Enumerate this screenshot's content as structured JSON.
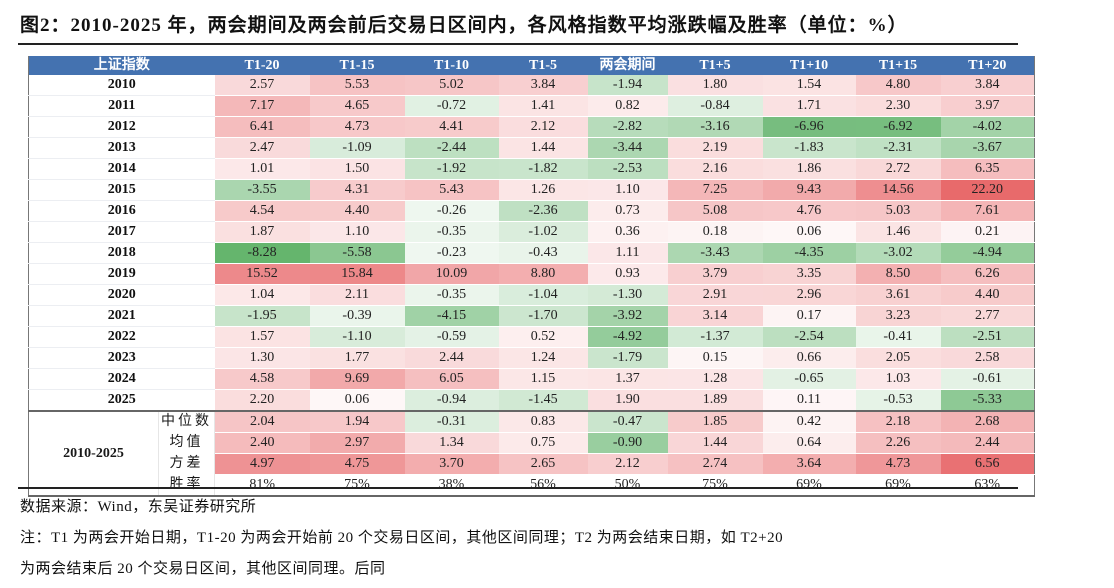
{
  "title": "图2：2010-2025 年，两会期间及两会前后交易日区间内，各风格指数平均涨跌幅及胜率（单位：%）",
  "table": {
    "corner_label": "上证指数",
    "columns": [
      "T1-20",
      "T1-15",
      "T1-10",
      "T1-5",
      "两会期间",
      "T1+5",
      "T1+10",
      "T1+15",
      "T1+20"
    ],
    "rows": [
      {
        "year": "2010",
        "values": [
          "2.57",
          "5.53",
          "5.02",
          "3.84",
          "-1.94",
          "1.80",
          "1.54",
          "4.80",
          "3.84"
        ]
      },
      {
        "year": "2011",
        "values": [
          "7.17",
          "4.65",
          "-0.72",
          "1.41",
          "0.82",
          "-0.84",
          "1.71",
          "2.30",
          "3.97"
        ]
      },
      {
        "year": "2012",
        "values": [
          "6.41",
          "4.73",
          "4.41",
          "2.12",
          "-2.82",
          "-3.16",
          "-6.96",
          "-6.92",
          "-4.02"
        ]
      },
      {
        "year": "2013",
        "values": [
          "2.47",
          "-1.09",
          "-2.44",
          "1.44",
          "-3.44",
          "2.19",
          "-1.83",
          "-2.31",
          "-3.67"
        ]
      },
      {
        "year": "2014",
        "values": [
          "1.01",
          "1.50",
          "-1.92",
          "-1.82",
          "-2.53",
          "2.16",
          "1.86",
          "2.72",
          "6.35"
        ]
      },
      {
        "year": "2015",
        "values": [
          "-3.55",
          "4.31",
          "5.43",
          "1.26",
          "1.10",
          "7.25",
          "9.43",
          "14.56",
          "22.20"
        ]
      },
      {
        "year": "2016",
        "values": [
          "4.54",
          "4.40",
          "-0.26",
          "-2.36",
          "0.73",
          "5.08",
          "4.76",
          "5.03",
          "7.61"
        ]
      },
      {
        "year": "2017",
        "values": [
          "1.87",
          "1.10",
          "-0.35",
          "-1.02",
          "0.36",
          "0.18",
          "0.06",
          "1.46",
          "0.21"
        ]
      },
      {
        "year": "2018",
        "values": [
          "-8.28",
          "-5.58",
          "-0.23",
          "-0.43",
          "1.11",
          "-3.43",
          "-4.35",
          "-3.02",
          "-4.94"
        ]
      },
      {
        "year": "2019",
        "values": [
          "15.52",
          "15.84",
          "10.09",
          "8.80",
          "0.93",
          "3.79",
          "3.35",
          "8.50",
          "6.26"
        ]
      },
      {
        "year": "2020",
        "values": [
          "1.04",
          "2.11",
          "-0.35",
          "-1.04",
          "-1.30",
          "2.91",
          "2.96",
          "3.61",
          "4.40"
        ]
      },
      {
        "year": "2021",
        "values": [
          "-1.95",
          "-0.39",
          "-4.15",
          "-1.70",
          "-3.92",
          "3.14",
          "0.17",
          "3.23",
          "2.77"
        ]
      },
      {
        "year": "2022",
        "values": [
          "1.57",
          "-1.10",
          "-0.59",
          "0.52",
          "-4.92",
          "-1.37",
          "-2.54",
          "-0.41",
          "-2.51"
        ]
      },
      {
        "year": "2023",
        "values": [
          "1.30",
          "1.77",
          "2.44",
          "1.24",
          "-1.79",
          "0.15",
          "0.66",
          "2.05",
          "2.58"
        ]
      },
      {
        "year": "2024",
        "values": [
          "4.58",
          "9.69",
          "6.05",
          "1.15",
          "1.37",
          "1.28",
          "-0.65",
          "1.03",
          "-0.61"
        ]
      },
      {
        "year": "2025",
        "values": [
          "2.20",
          "0.06",
          "-0.94",
          "-1.45",
          "1.90",
          "1.89",
          "0.11",
          "-0.53",
          "-5.33"
        ]
      }
    ],
    "summary": {
      "period_label": "2010-2025",
      "rows": [
        {
          "stat": "中位数",
          "values": [
            "2.04",
            "1.94",
            "-0.31",
            "0.83",
            "-0.47",
            "1.85",
            "0.42",
            "2.18",
            "2.68"
          ]
        },
        {
          "stat": "均值",
          "values": [
            "2.40",
            "2.97",
            "1.34",
            "0.75",
            "-0.90",
            "1.44",
            "0.64",
            "2.26",
            "2.44"
          ]
        },
        {
          "stat": "方差",
          "values": [
            "4.97",
            "4.75",
            "3.70",
            "2.65",
            "2.12",
            "2.74",
            "3.64",
            "4.73",
            "6.56"
          ]
        },
        {
          "stat": "胜率",
          "values": [
            "81%",
            "75%",
            "38%",
            "56%",
            "50%",
            "75%",
            "69%",
            "69%",
            "63%"
          ]
        }
      ]
    },
    "colors": {
      "header_bg": "#4472b0",
      "positive_max": "#e8686a",
      "negative_max": "#63b46c",
      "neutral": "#ffffff"
    }
  },
  "footer": {
    "source": "数据来源：Wind，东吴证券研究所",
    "note_line1": "注：T1 为两会开始日期，T1-20 为两会开始前 20 个交易日区间，其他区间同理；T2 为两会结束日期，如 T2+20",
    "note_line2": "为两会结束后 20 个交易日区间，其他区间同理。后同"
  }
}
